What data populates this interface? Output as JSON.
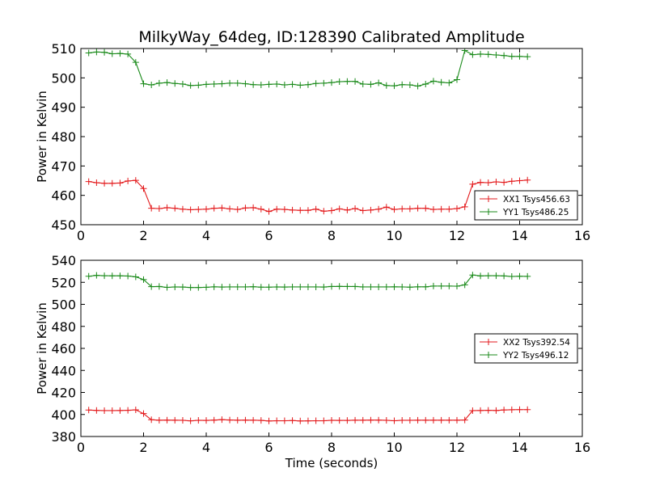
{
  "chart_data": [
    {
      "type": "line",
      "title": "MilkyWay_64deg, ID:128390 Calibrated Amplitude",
      "xlabel": "",
      "ylabel": "Power in Kelvin",
      "xlim": [
        0,
        16
      ],
      "ylim": [
        450,
        510
      ],
      "xticks": [
        0,
        2,
        4,
        6,
        8,
        10,
        12,
        14,
        16
      ],
      "yticks": [
        450,
        460,
        470,
        480,
        490,
        500,
        510
      ],
      "grid": false,
      "legend_position": "lower-right",
      "x": [
        0.25,
        0.5,
        0.75,
        1.0,
        1.25,
        1.5,
        1.75,
        2.0,
        2.25,
        2.5,
        2.75,
        3.0,
        3.25,
        3.5,
        3.75,
        4.0,
        4.25,
        4.5,
        4.75,
        5.0,
        5.25,
        5.5,
        5.75,
        6.0,
        6.25,
        6.5,
        6.75,
        7.0,
        7.25,
        7.5,
        7.75,
        8.0,
        8.25,
        8.5,
        8.75,
        9.0,
        9.25,
        9.5,
        9.75,
        10.0,
        10.25,
        10.5,
        10.75,
        11.0,
        11.25,
        11.5,
        11.75,
        12.0,
        12.25,
        12.5,
        12.75,
        13.0,
        13.25,
        13.5,
        13.75,
        14.0,
        14.25
      ],
      "series": [
        {
          "name": "XX1 Tsys456.63",
          "color": "#e31a1c",
          "values": [
            464.7,
            464.3,
            464.1,
            464.1,
            464.2,
            464.9,
            465.1,
            462.3,
            455.6,
            455.5,
            455.8,
            455.6,
            455.3,
            455.1,
            455.2,
            455.3,
            455.6,
            455.7,
            455.4,
            455.2,
            455.7,
            455.8,
            455.3,
            454.5,
            455.3,
            455.2,
            455.0,
            454.9,
            454.9,
            455.3,
            454.6,
            454.8,
            455.4,
            455.0,
            455.5,
            454.8,
            455.0,
            455.3,
            456.0,
            455.2,
            455.4,
            455.4,
            455.6,
            455.6,
            455.2,
            455.3,
            455.3,
            455.5,
            456.1,
            463.8,
            464.4,
            464.3,
            464.6,
            464.4,
            464.8,
            465.0,
            465.2
          ]
        },
        {
          "name": "YY1 Tsys486.25",
          "color": "#1a8a1a",
          "values": [
            508.5,
            508.8,
            508.7,
            508.2,
            508.3,
            508.1,
            505.3,
            498.0,
            497.6,
            498.2,
            498.4,
            498.1,
            497.9,
            497.4,
            497.5,
            497.8,
            497.9,
            498.0,
            498.2,
            498.2,
            498.0,
            497.7,
            497.6,
            497.8,
            497.9,
            497.6,
            497.8,
            497.5,
            497.7,
            498.1,
            498.2,
            498.4,
            498.7,
            498.8,
            498.8,
            497.9,
            497.8,
            498.3,
            497.4,
            497.3,
            497.7,
            497.6,
            497.2,
            497.9,
            498.9,
            498.5,
            498.3,
            499.4,
            509.3,
            507.9,
            508.1,
            508.0,
            507.8,
            507.6,
            507.3,
            507.3,
            507.2
          ]
        }
      ]
    },
    {
      "type": "line",
      "title": "",
      "xlabel": "Time (seconds)",
      "ylabel": "Power in Kelvin",
      "xlim": [
        0,
        16
      ],
      "ylim": [
        380,
        540
      ],
      "xticks": [
        0,
        2,
        4,
        6,
        8,
        10,
        12,
        14,
        16
      ],
      "yticks": [
        380,
        400,
        420,
        440,
        460,
        480,
        500,
        520,
        540
      ],
      "grid": false,
      "legend_position": "center-right",
      "x": [
        0.25,
        0.5,
        0.75,
        1.0,
        1.25,
        1.5,
        1.75,
        2.0,
        2.25,
        2.5,
        2.75,
        3.0,
        3.25,
        3.5,
        3.75,
        4.0,
        4.25,
        4.5,
        4.75,
        5.0,
        5.25,
        5.5,
        5.75,
        6.0,
        6.25,
        6.5,
        6.75,
        7.0,
        7.25,
        7.5,
        7.75,
        8.0,
        8.25,
        8.5,
        8.75,
        9.0,
        9.25,
        9.5,
        9.75,
        10.0,
        10.25,
        10.5,
        10.75,
        11.0,
        11.25,
        11.5,
        11.75,
        12.0,
        12.25,
        12.5,
        12.75,
        13.0,
        13.25,
        13.5,
        13.75,
        14.0,
        14.25
      ],
      "series": [
        {
          "name": "XX2 Tsys392.54",
          "color": "#e31a1c",
          "values": [
            404.0,
            403.7,
            403.5,
            403.5,
            403.6,
            403.8,
            404.2,
            400.8,
            395.2,
            394.8,
            394.9,
            394.8,
            394.7,
            394.2,
            394.7,
            394.6,
            394.9,
            395.3,
            395.0,
            394.8,
            394.9,
            394.8,
            394.6,
            394.1,
            394.3,
            394.3,
            394.5,
            394.1,
            394.2,
            394.3,
            394.3,
            394.7,
            394.6,
            394.6,
            394.8,
            394.8,
            394.9,
            394.9,
            394.7,
            394.3,
            394.7,
            394.7,
            394.8,
            394.8,
            394.8,
            394.8,
            394.8,
            394.8,
            395.0,
            403.5,
            403.6,
            403.8,
            403.6,
            404.1,
            404.3,
            404.4,
            404.4
          ]
        },
        {
          "name": "YY2 Tsys496.12",
          "color": "#1a8a1a",
          "values": [
            525.5,
            526.3,
            526.0,
            525.9,
            525.9,
            525.7,
            525.0,
            522.5,
            516.1,
            516.2,
            515.4,
            515.8,
            515.7,
            515.3,
            515.3,
            515.5,
            515.9,
            515.7,
            515.8,
            515.8,
            515.8,
            516.0,
            515.6,
            515.6,
            515.8,
            515.7,
            515.8,
            515.8,
            515.8,
            515.8,
            515.7,
            516.2,
            516.3,
            516.2,
            516.2,
            515.8,
            515.8,
            515.8,
            515.8,
            515.9,
            515.8,
            515.6,
            515.9,
            515.9,
            516.6,
            516.6,
            516.6,
            516.5,
            517.7,
            526.6,
            525.8,
            526.0,
            526.0,
            525.8,
            525.3,
            525.5,
            525.4
          ]
        }
      ]
    }
  ]
}
